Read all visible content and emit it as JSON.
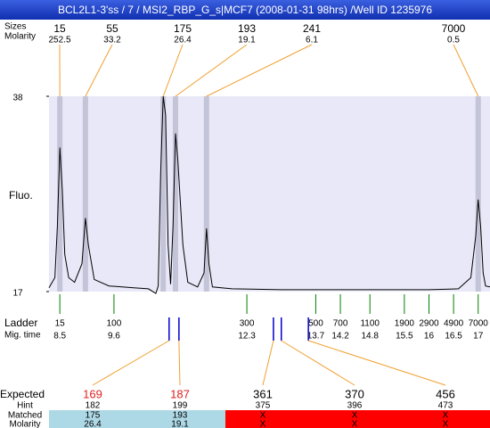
{
  "header": {
    "title": "BCL2L1-3'ss / 7 / MSI2_RBP_G_s|MCF7 (2008-01-31 98hrs) /Well ID 1235976"
  },
  "chart_data": {
    "type": "line",
    "y_label": "Fluo.",
    "ylim": [
      17,
      38
    ],
    "yticks": [
      17,
      38
    ],
    "xlim": [
      8.28,
      17.24
    ],
    "color": "#000000",
    "x": [
      8.28,
      8.4,
      8.45,
      8.5,
      8.55,
      8.6,
      8.68,
      8.8,
      8.95,
      9.02,
      9.08,
      9.2,
      9.5,
      10.0,
      10.3,
      10.45,
      10.5,
      10.55,
      10.6,
      10.65,
      10.7,
      10.75,
      10.8,
      10.85,
      10.9,
      11.0,
      11.1,
      11.3,
      11.43,
      11.48,
      11.53,
      11.6,
      12.0,
      13.0,
      14.0,
      15.0,
      16.0,
      16.6,
      16.85,
      16.95,
      17.0,
      17.05,
      17.1,
      17.15,
      17.24
    ],
    "values": [
      17.4,
      18.5,
      24,
      32.5,
      28,
      21,
      18.5,
      18,
      20,
      24.9,
      22,
      18.3,
      17.6,
      17.4,
      17.3,
      16.8,
      17.6,
      30,
      38,
      36,
      22,
      17.8,
      24,
      34,
      31,
      22,
      18,
      17.5,
      19,
      23.8,
      20,
      17.5,
      17.3,
      17.2,
      17.2,
      17.2,
      17.2,
      17.3,
      18.5,
      23,
      26.9,
      24,
      19,
      17.6,
      17.5
    ]
  },
  "peaks": {
    "label_sizes": "Sizes",
    "label_molarity": "Molarity",
    "sizes": [
      15,
      55,
      175,
      193,
      241,
      7000
    ],
    "molarity": [
      252.5,
      33.2,
      26.4,
      19.1,
      6.1,
      0.5
    ],
    "mig_time": [
      8.5,
      9.02,
      10.6,
      10.85,
      11.48,
      17.0
    ]
  },
  "ladder": {
    "label": "Ladder",
    "label_time": "Mig. time",
    "sizes": [
      15,
      100,
      300,
      500,
      700,
      1100,
      1900,
      2900,
      4900,
      7000
    ],
    "mig_time": [
      8.5,
      9.6,
      12.3,
      13.7,
      14.2,
      14.8,
      15.5,
      16,
      16.5,
      17
    ]
  },
  "expected": {
    "label_expected": "Expected",
    "label_hint": "Hint",
    "label_matched": "Matched",
    "label_molarity": "Molarity",
    "values": [
      169,
      187,
      361,
      370,
      456
    ],
    "hint": [
      182,
      199,
      375,
      396,
      473
    ],
    "matched": [
      175,
      193,
      "X",
      "X",
      "X"
    ],
    "molarity": [
      26.4,
      19.1,
      "X",
      "X",
      "X"
    ],
    "mig_time": [
      10.72,
      10.92,
      12.84,
      13.0,
      13.55
    ],
    "match_found": [
      true,
      true,
      false,
      false,
      false
    ],
    "matched_color": "#add8e6",
    "unmatched_color": "#ff0000"
  }
}
